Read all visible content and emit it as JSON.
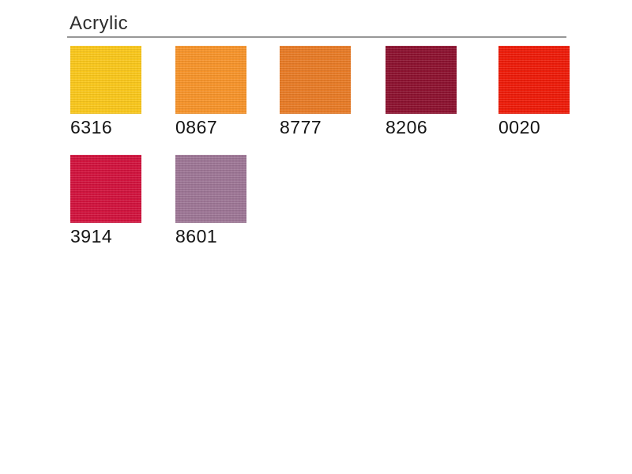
{
  "page": {
    "title": "Acrylic"
  },
  "rule_color": "#8f8f8f",
  "swatches": [
    {
      "code": "6316",
      "color": "#FAC71A"
    },
    {
      "code": "0867",
      "color": "#F79329"
    },
    {
      "code": "8777",
      "color": "#E87A25"
    },
    {
      "code": "8206",
      "color": "#8C102E"
    },
    {
      "code": "0020",
      "color": "#EE1A07"
    },
    {
      "code": "3914",
      "color": "#D1113C"
    },
    {
      "code": "8601",
      "color": "#9D7595"
    }
  ]
}
